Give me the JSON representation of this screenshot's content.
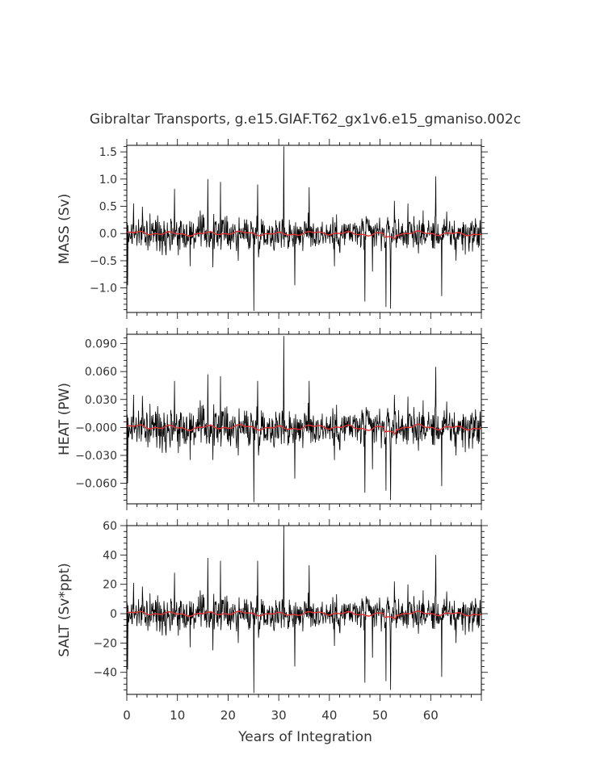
{
  "chart_data": {
    "type": "line",
    "title": "Gibraltar Transports, g.e15.GIAF.T62_gx1v6.e15_gmaniso.002c",
    "xlabel": "Years of Integration",
    "xlim": [
      0,
      70
    ],
    "xticks": [
      0,
      10,
      20,
      30,
      40,
      50,
      60
    ],
    "xtick_labels": [
      "0",
      "10",
      "20",
      "30",
      "40",
      "50",
      "60"
    ],
    "series_colors": {
      "raw": "#000000",
      "smoothed": "#e03030"
    },
    "panels": [
      {
        "name": "mass",
        "ylabel": "MASS (Sv)",
        "ylim": [
          -1.45,
          1.62
        ],
        "yticks": [
          -1.0,
          -0.5,
          0.0,
          0.5,
          1.0,
          1.5
        ],
        "ytick_labels": [
          "−1.0",
          "−0.5",
          "0.0",
          "0.5",
          "1.0",
          "1.5"
        ],
        "noise_std": 0.16,
        "smooth_amp": 0.035,
        "spikes": [
          {
            "x": 0.2,
            "y": -0.95
          },
          {
            "x": 1.3,
            "y": 0.55
          },
          {
            "x": 9.4,
            "y": 0.82
          },
          {
            "x": 12.5,
            "y": -0.6
          },
          {
            "x": 16.0,
            "y": 1.0
          },
          {
            "x": 17.0,
            "y": -0.62
          },
          {
            "x": 18.5,
            "y": 0.95
          },
          {
            "x": 22.0,
            "y": -0.5
          },
          {
            "x": 25.1,
            "y": -1.42
          },
          {
            "x": 25.8,
            "y": 0.9
          },
          {
            "x": 31.0,
            "y": 1.6
          },
          {
            "x": 33.2,
            "y": -0.95
          },
          {
            "x": 36.0,
            "y": 0.85
          },
          {
            "x": 41.0,
            "y": -0.6
          },
          {
            "x": 47.0,
            "y": -1.25
          },
          {
            "x": 48.5,
            "y": -0.7
          },
          {
            "x": 51.2,
            "y": -1.35
          },
          {
            "x": 52.1,
            "y": -1.38
          },
          {
            "x": 52.8,
            "y": 0.6
          },
          {
            "x": 55.5,
            "y": 0.55
          },
          {
            "x": 61.0,
            "y": 1.05
          },
          {
            "x": 62.2,
            "y": -1.15
          },
          {
            "x": 65.0,
            "y": -0.5
          }
        ]
      },
      {
        "name": "heat",
        "ylabel": "HEAT (PW)",
        "ylim": [
          -0.082,
          0.1
        ],
        "yticks": [
          -0.06,
          -0.03,
          0.0,
          0.03,
          0.06,
          0.09
        ],
        "ytick_labels": [
          "−0.060",
          "−0.030",
          "−0.000",
          "0.030",
          "0.060",
          "0.090"
        ],
        "noise_std": 0.011,
        "smooth_amp": 0.0025,
        "spikes": [
          {
            "x": 0.2,
            "y": -0.06
          },
          {
            "x": 1.3,
            "y": 0.035
          },
          {
            "x": 9.4,
            "y": 0.05
          },
          {
            "x": 12.5,
            "y": -0.035
          },
          {
            "x": 16.0,
            "y": 0.057
          },
          {
            "x": 17.0,
            "y": -0.035
          },
          {
            "x": 18.5,
            "y": 0.055
          },
          {
            "x": 22.0,
            "y": -0.03
          },
          {
            "x": 25.1,
            "y": -0.08
          },
          {
            "x": 25.8,
            "y": 0.05
          },
          {
            "x": 31.0,
            "y": 0.098
          },
          {
            "x": 33.2,
            "y": -0.055
          },
          {
            "x": 36.0,
            "y": 0.05
          },
          {
            "x": 41.0,
            "y": -0.035
          },
          {
            "x": 47.0,
            "y": -0.07
          },
          {
            "x": 48.5,
            "y": -0.045
          },
          {
            "x": 51.2,
            "y": -0.068
          },
          {
            "x": 52.1,
            "y": -0.078
          },
          {
            "x": 52.8,
            "y": 0.035
          },
          {
            "x": 55.5,
            "y": 0.033
          },
          {
            "x": 61.0,
            "y": 0.065
          },
          {
            "x": 62.2,
            "y": -0.063
          },
          {
            "x": 65.0,
            "y": -0.03
          }
        ]
      },
      {
        "name": "salt",
        "ylabel": "SALT (Sv*ppt)",
        "ylim": [
          -55,
          60
        ],
        "yticks": [
          -40,
          -20,
          0,
          20,
          40,
          60
        ],
        "ytick_labels": [
          "−40",
          "−20",
          "0",
          "20",
          "40",
          "60"
        ],
        "noise_std": 6.0,
        "smooth_amp": 1.3,
        "spikes": [
          {
            "x": 0.2,
            "y": -38
          },
          {
            "x": 1.3,
            "y": 21
          },
          {
            "x": 9.4,
            "y": 28
          },
          {
            "x": 12.5,
            "y": -23
          },
          {
            "x": 16.0,
            "y": 38
          },
          {
            "x": 17.0,
            "y": -25
          },
          {
            "x": 18.5,
            "y": 36
          },
          {
            "x": 22.0,
            "y": -20
          },
          {
            "x": 25.1,
            "y": -54
          },
          {
            "x": 25.8,
            "y": 36
          },
          {
            "x": 31.0,
            "y": 60
          },
          {
            "x": 33.2,
            "y": -36
          },
          {
            "x": 36.0,
            "y": 33
          },
          {
            "x": 41.0,
            "y": -22
          },
          {
            "x": 47.0,
            "y": -47
          },
          {
            "x": 48.5,
            "y": -30
          },
          {
            "x": 51.2,
            "y": -46
          },
          {
            "x": 52.1,
            "y": -52
          },
          {
            "x": 52.8,
            "y": 22
          },
          {
            "x": 55.5,
            "y": 20
          },
          {
            "x": 61.0,
            "y": 40
          },
          {
            "x": 62.2,
            "y": -43
          },
          {
            "x": 65.0,
            "y": -20
          }
        ]
      }
    ]
  }
}
